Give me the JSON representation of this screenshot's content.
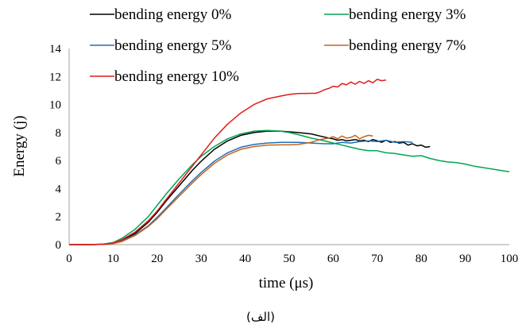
{
  "chart_data": {
    "type": "line",
    "caption": "(الف)",
    "xlabel": "time  (μs)",
    "ylabel": "Energy  (j)",
    "xlim": [
      0,
      100
    ],
    "ylim": [
      0,
      14
    ],
    "xticks": [
      "0",
      "10",
      "20",
      "30",
      "40",
      "50",
      "60",
      "70",
      "80",
      "90",
      "100"
    ],
    "yticks": [
      "0",
      "2",
      "4",
      "6",
      "8",
      "10",
      "12",
      "14"
    ],
    "grid": false,
    "legend_position": "top",
    "series": [
      {
        "name": "bending energy 0%",
        "color": "#000000",
        "x": [
          0,
          5,
          8,
          10,
          12,
          15,
          18,
          20,
          22,
          25,
          28,
          30,
          33,
          36,
          39,
          42,
          45,
          48,
          50,
          52,
          55,
          57,
          59,
          60,
          61,
          62,
          63,
          64,
          65,
          66,
          67,
          68,
          69,
          70,
          71,
          72,
          73,
          74,
          75,
          76,
          77,
          78,
          79,
          80,
          81,
          82
        ],
        "y": [
          0,
          0,
          0.03,
          0.1,
          0.3,
          0.8,
          1.6,
          2.3,
          3.1,
          4.2,
          5.3,
          5.95,
          6.8,
          7.4,
          7.8,
          8.0,
          8.1,
          8.1,
          8.05,
          8.0,
          7.9,
          7.75,
          7.6,
          7.55,
          7.45,
          7.5,
          7.4,
          7.45,
          7.5,
          7.4,
          7.45,
          7.35,
          7.5,
          7.4,
          7.3,
          7.45,
          7.3,
          7.35,
          7.25,
          7.3,
          7.1,
          7.2,
          7.05,
          7.1,
          6.95,
          7.0
        ]
      },
      {
        "name": "bending energy 3%",
        "color": "#00A651",
        "x": [
          0,
          5,
          8,
          10,
          12,
          15,
          18,
          20,
          22,
          25,
          28,
          30,
          33,
          36,
          39,
          42,
          45,
          48,
          50,
          52,
          55,
          58,
          60,
          62,
          64,
          66,
          68,
          70,
          72,
          74,
          76,
          78,
          80,
          82,
          84,
          86,
          88,
          90,
          92,
          94,
          96,
          98,
          100
        ],
        "y": [
          0,
          0,
          0.05,
          0.15,
          0.45,
          1.1,
          2.0,
          2.8,
          3.6,
          4.7,
          5.7,
          6.3,
          7.0,
          7.55,
          7.9,
          8.1,
          8.15,
          8.1,
          8.0,
          7.85,
          7.6,
          7.4,
          7.25,
          7.1,
          6.95,
          6.8,
          6.7,
          6.7,
          6.55,
          6.5,
          6.4,
          6.3,
          6.35,
          6.15,
          6.0,
          5.9,
          5.85,
          5.75,
          5.6,
          5.5,
          5.4,
          5.3,
          5.2
        ]
      },
      {
        "name": "bending energy 5%",
        "color": "#1F6FB8",
        "x": [
          0,
          5,
          8,
          10,
          12,
          15,
          18,
          20,
          22,
          25,
          28,
          30,
          33,
          36,
          39,
          42,
          45,
          48,
          50,
          52,
          55,
          58,
          60,
          62,
          64,
          66,
          68,
          70,
          72,
          74,
          76,
          78
        ],
        "y": [
          0,
          0,
          0.03,
          0.08,
          0.25,
          0.7,
          1.35,
          1.95,
          2.6,
          3.6,
          4.55,
          5.15,
          5.95,
          6.55,
          6.95,
          7.15,
          7.25,
          7.3,
          7.3,
          7.3,
          7.25,
          7.2,
          7.2,
          7.3,
          7.25,
          7.35,
          7.4,
          7.35,
          7.45,
          7.3,
          7.35,
          7.3
        ]
      },
      {
        "name": "bending energy 7%",
        "color": "#C8641E",
        "x": [
          0,
          5,
          8,
          10,
          12,
          15,
          18,
          20,
          22,
          25,
          28,
          30,
          33,
          36,
          39,
          42,
          45,
          48,
          50,
          52,
          55,
          57,
          59,
          60,
          61,
          62,
          63,
          64,
          65,
          66,
          67,
          68,
          69
        ],
        "y": [
          0,
          0,
          0.02,
          0.07,
          0.22,
          0.65,
          1.3,
          1.85,
          2.5,
          3.45,
          4.4,
          5.0,
          5.8,
          6.4,
          6.8,
          7.0,
          7.1,
          7.12,
          7.12,
          7.15,
          7.3,
          7.5,
          7.6,
          7.7,
          7.55,
          7.75,
          7.6,
          7.65,
          7.8,
          7.55,
          7.7,
          7.8,
          7.75
        ]
      },
      {
        "name": "bending energy 10%",
        "color": "#E31A1C",
        "x": [
          0,
          5,
          8,
          10,
          12,
          15,
          18,
          20,
          22,
          25,
          28,
          30,
          33,
          36,
          39,
          42,
          45,
          48,
          50,
          52,
          55,
          56,
          57,
          58,
          59,
          60,
          61,
          62,
          63,
          64,
          65,
          66,
          67,
          68,
          69,
          70,
          71,
          72
        ],
        "y": [
          0,
          0,
          0.03,
          0.12,
          0.35,
          0.9,
          1.7,
          2.4,
          3.2,
          4.4,
          5.6,
          6.4,
          7.6,
          8.6,
          9.4,
          10.0,
          10.4,
          10.6,
          10.72,
          10.78,
          10.8,
          10.8,
          10.9,
          11.05,
          11.15,
          11.3,
          11.25,
          11.5,
          11.4,
          11.6,
          11.45,
          11.65,
          11.5,
          11.7,
          11.55,
          11.8,
          11.7,
          11.75
        ]
      }
    ]
  }
}
